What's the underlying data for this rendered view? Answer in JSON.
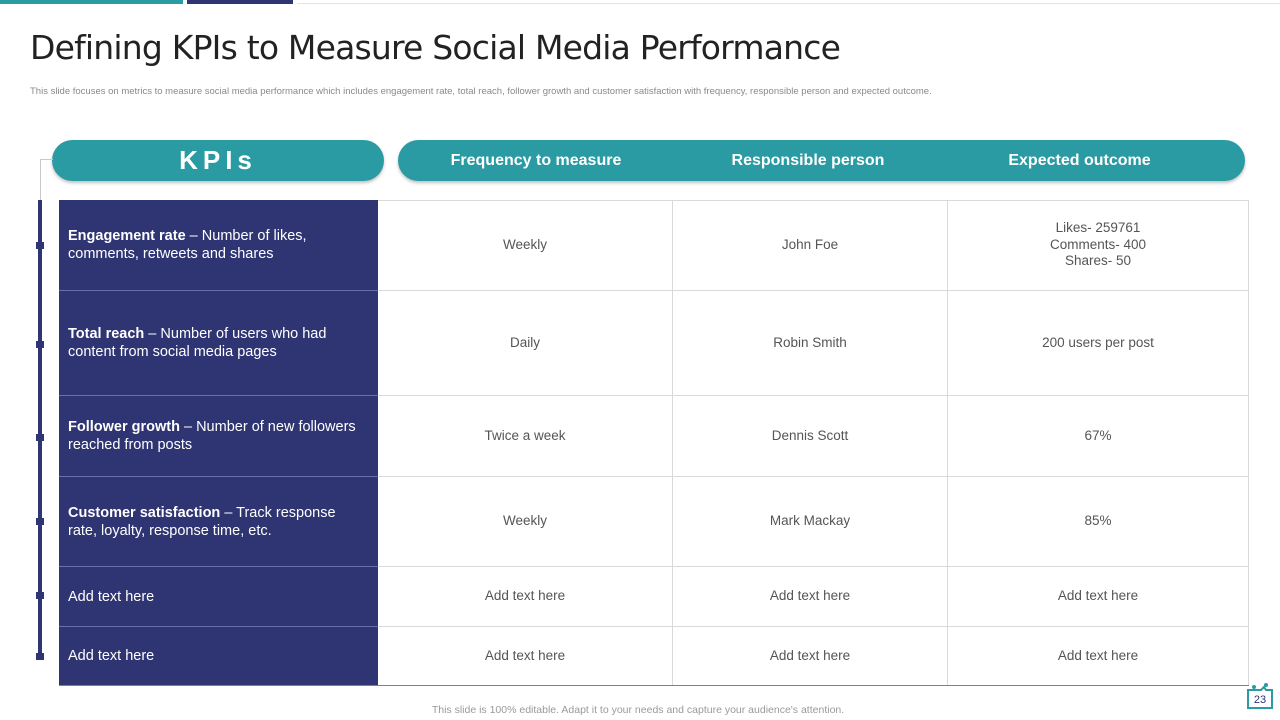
{
  "title": "Defining KPIs to Measure Social Media Performance",
  "subtitle": "This slide focuses on metrics to measure social media  performance which includes engagement rate, total reach, follower growth and customer satisfaction with frequency, responsible person and expected outcome.",
  "kpis_header": "KPIs",
  "columns": [
    "Frequency to measure",
    "Responsible person",
    "Expected outcome"
  ],
  "rows": [
    {
      "kpi_bold": "Engagement rate",
      "kpi_rest": " – Number of likes, comments, retweets and shares",
      "frequency": "Weekly",
      "person": "John Foe",
      "outcome_lines": [
        "Likes- 259761",
        "Comments- 400",
        "Shares- 50"
      ]
    },
    {
      "kpi_bold": "Total reach",
      "kpi_rest": " – Number of users who had content from social media pages",
      "frequency": "Daily",
      "person": "Robin Smith",
      "outcome": "200 users per post"
    },
    {
      "kpi_bold": "Follower growth",
      "kpi_rest": " – Number of new followers reached from posts",
      "frequency": "Twice a week",
      "person": "Dennis Scott",
      "outcome": "67%"
    },
    {
      "kpi_bold": "Customer satisfaction",
      "kpi_rest": "  – Track response rate, loyalty,  response time, etc.",
      "frequency": "Weekly",
      "person": "Mark Mackay",
      "outcome": "85%"
    },
    {
      "kpi_plain": "Add text here",
      "frequency": "Add text here",
      "person": "Add text here",
      "outcome": "Add text here"
    },
    {
      "kpi_plain": "Add text here",
      "frequency": "Add text here",
      "person": "Add text here",
      "outcome": "Add text here"
    }
  ],
  "footer": "This slide is 100% editable. Adapt it to your needs and capture your audience's attention.",
  "page_number": "23",
  "colors": {
    "teal": "#2a9aa3",
    "navy": "#2f3472"
  }
}
